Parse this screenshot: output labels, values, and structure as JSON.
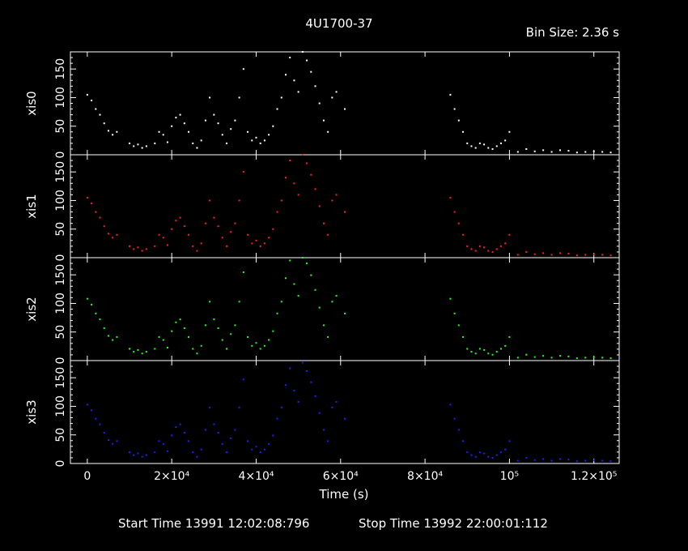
{
  "header": {
    "title": "4U1700-37",
    "bin_size": "Bin Size: 2.36 s"
  },
  "footer": {
    "start_time": "Start Time 13991 12:02:08:796",
    "stop_time": "Stop Time 13992 22:00:01:112"
  },
  "colors": {
    "background": "#000000",
    "axes": "#ffffff",
    "xis0": "#ffffff",
    "xis1": "#ff2020",
    "xis2": "#20ff20",
    "xis3": "#2020ff"
  },
  "chart_data": {
    "type": "scatter",
    "title": "4U1700-37",
    "xlabel": "Time (s)",
    "xlim": [
      -4000,
      126000
    ],
    "ylim": [
      0,
      180
    ],
    "x_ticks": [
      {
        "value": 0,
        "label": "0"
      },
      {
        "value": 20000,
        "label": "2×10⁴"
      },
      {
        "value": 40000,
        "label": "4×10⁴"
      },
      {
        "value": 60000,
        "label": "6×10⁴"
      },
      {
        "value": 80000,
        "label": "8×10⁴"
      },
      {
        "value": 100000,
        "label": "10⁵"
      },
      {
        "value": 120000,
        "label": "1.2×10⁵"
      }
    ],
    "y_ticks": [
      0,
      50,
      100,
      150
    ],
    "panels": [
      {
        "ylabel": "xis0",
        "color": "#ffffff"
      },
      {
        "ylabel": "xis1",
        "color": "#ff2020"
      },
      {
        "ylabel": "xis2",
        "color": "#20ff20"
      },
      {
        "ylabel": "xis3",
        "color": "#2020ff"
      }
    ],
    "light_curve": {
      "x": [
        0,
        1000,
        2000,
        3000,
        4000,
        5000,
        6000,
        7000,
        10000,
        11000,
        12000,
        13000,
        14000,
        16000,
        17000,
        18000,
        19000,
        20000,
        21000,
        22000,
        23000,
        24000,
        25000,
        26000,
        27000,
        28000,
        29000,
        30000,
        31000,
        32000,
        33000,
        34000,
        35000,
        36000,
        37000,
        38000,
        39000,
        40000,
        41000,
        42000,
        43000,
        44000,
        45000,
        46000,
        47000,
        48000,
        49000,
        50000,
        51000,
        52000,
        53000,
        54000,
        55000,
        56000,
        57000,
        58000,
        59000,
        61000,
        86000,
        87000,
        88000,
        89000,
        90000,
        91000,
        92000,
        93000,
        94000,
        95000,
        96000,
        97000,
        98000,
        99000,
        100000,
        102000,
        104000,
        106000,
        108000,
        110000,
        112000,
        114000,
        116000,
        118000,
        120000,
        122000,
        124000
      ],
      "y": [
        105,
        95,
        80,
        70,
        55,
        42,
        35,
        40,
        20,
        15,
        18,
        12,
        15,
        20,
        40,
        35,
        22,
        50,
        65,
        70,
        55,
        40,
        20,
        12,
        25,
        60,
        100,
        70,
        55,
        35,
        20,
        45,
        60,
        100,
        150,
        40,
        25,
        30,
        20,
        25,
        35,
        50,
        80,
        100,
        140,
        170,
        130,
        110,
        180,
        165,
        145,
        120,
        90,
        60,
        40,
        100,
        110,
        80,
        105,
        80,
        60,
        40,
        20,
        15,
        12,
        20,
        18,
        12,
        10,
        15,
        20,
        25,
        40,
        5,
        10,
        6,
        8,
        5,
        8,
        7,
        4,
        5,
        6,
        5,
        4
      ]
    },
    "panel_scales": [
      1.0,
      1.0,
      1.03,
      0.98
    ]
  }
}
